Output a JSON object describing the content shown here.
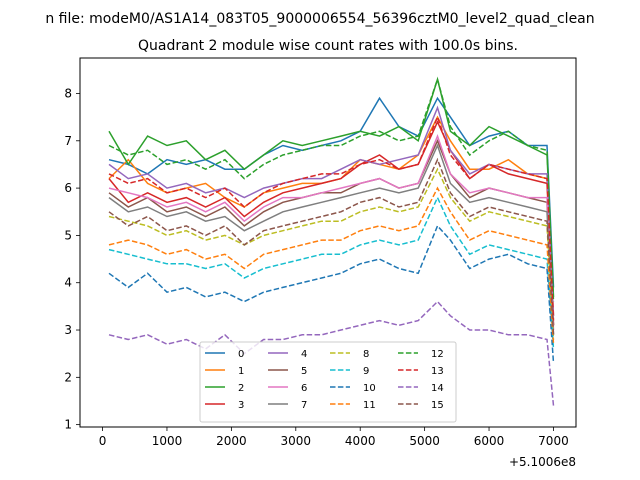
{
  "chart_data": {
    "type": "line",
    "suptitle": "n file: modeM0/AS1A14_083T05_9000006554_56396cztM0_level2_quad_clean",
    "title": "Quadrant 2 module wise count rates with 100.0s bins.",
    "xlabel": "",
    "ylabel": "",
    "x_offset_label": "+5.1006e8",
    "xlim": [
      -350,
      7350
    ],
    "ylim": [
      0.95,
      8.75
    ],
    "xticks": [
      "0",
      "1000",
      "2000",
      "3000",
      "4000",
      "5000",
      "6000",
      "7000"
    ],
    "yticks": [
      "1",
      "2",
      "3",
      "4",
      "5",
      "6",
      "7",
      "8"
    ],
    "x": [
      100,
      400,
      700,
      1000,
      1300,
      1600,
      1900,
      2200,
      2500,
      2800,
      3100,
      3400,
      3700,
      4000,
      4300,
      4600,
      4900,
      5200,
      5400,
      5700,
      6000,
      6300,
      6600,
      6900,
      7000
    ],
    "legend": {
      "location": "lower center",
      "columns": 4
    },
    "series": [
      {
        "name": "0",
        "color": "#1f77b4",
        "dash": "solid",
        "values": [
          6.6,
          6.5,
          6.3,
          6.6,
          6.5,
          6.6,
          6.4,
          6.4,
          6.7,
          6.9,
          6.8,
          6.9,
          7.0,
          7.2,
          7.9,
          7.3,
          7.1,
          7.9,
          7.5,
          6.9,
          7.1,
          7.2,
          6.9,
          6.9,
          3.9
        ]
      },
      {
        "name": "1",
        "color": "#ff7f0e",
        "dash": "solid",
        "values": [
          6.2,
          6.6,
          6.1,
          5.9,
          6.0,
          6.1,
          5.8,
          5.6,
          5.9,
          6.0,
          6.1,
          6.1,
          6.2,
          6.6,
          6.5,
          6.4,
          6.7,
          7.5,
          7.0,
          6.4,
          6.4,
          6.6,
          6.3,
          6.2,
          3.3
        ]
      },
      {
        "name": "2",
        "color": "#2ca02c",
        "dash": "solid",
        "values": [
          7.2,
          6.5,
          7.1,
          6.9,
          7.0,
          6.6,
          6.8,
          6.4,
          6.7,
          7.0,
          6.9,
          7.0,
          7.1,
          7.2,
          7.1,
          7.3,
          7.0,
          8.3,
          7.2,
          6.9,
          7.3,
          7.1,
          6.9,
          6.7,
          3.7
        ]
      },
      {
        "name": "3",
        "color": "#d62728",
        "dash": "solid",
        "values": [
          6.2,
          5.7,
          5.9,
          5.7,
          5.8,
          5.6,
          5.8,
          5.4,
          5.7,
          5.9,
          6.0,
          6.1,
          6.2,
          6.5,
          6.7,
          6.4,
          6.5,
          7.4,
          6.8,
          6.2,
          6.5,
          6.3,
          6.2,
          6.1,
          3.1
        ]
      },
      {
        "name": "4",
        "color": "#9467bd",
        "dash": "solid",
        "values": [
          6.5,
          6.2,
          6.3,
          6.0,
          6.1,
          5.9,
          6.0,
          5.8,
          6.0,
          6.1,
          6.2,
          6.2,
          6.4,
          6.6,
          6.5,
          6.6,
          6.7,
          7.7,
          6.8,
          6.3,
          6.5,
          6.4,
          6.3,
          6.3,
          3.3
        ]
      },
      {
        "name": "5",
        "color": "#8c564b",
        "dash": "solid",
        "values": [
          5.9,
          5.6,
          5.8,
          5.5,
          5.6,
          5.4,
          5.6,
          5.2,
          5.5,
          5.7,
          5.8,
          5.9,
          5.9,
          6.1,
          6.2,
          6.0,
          6.1,
          7.0,
          6.3,
          5.8,
          6.0,
          5.9,
          5.8,
          5.7,
          3.1
        ]
      },
      {
        "name": "6",
        "color": "#e377c2",
        "dash": "solid",
        "values": [
          6.0,
          5.9,
          5.8,
          5.6,
          5.7,
          5.5,
          5.7,
          5.3,
          5.6,
          5.8,
          5.8,
          5.9,
          6.0,
          6.1,
          6.2,
          6.0,
          6.1,
          7.1,
          6.3,
          5.9,
          6.0,
          5.9,
          5.8,
          5.8,
          3.0
        ]
      },
      {
        "name": "7",
        "color": "#7f7f7f",
        "dash": "solid",
        "values": [
          5.8,
          5.5,
          5.6,
          5.4,
          5.5,
          5.3,
          5.4,
          5.1,
          5.3,
          5.5,
          5.6,
          5.7,
          5.8,
          5.9,
          6.0,
          5.9,
          6.0,
          6.9,
          6.1,
          5.7,
          5.8,
          5.7,
          5.6,
          5.5,
          2.9
        ]
      },
      {
        "name": "8",
        "color": "#bcbd22",
        "dash": "dashed",
        "values": [
          5.4,
          5.3,
          5.2,
          5.0,
          5.1,
          4.9,
          5.0,
          4.8,
          5.0,
          5.1,
          5.2,
          5.3,
          5.3,
          5.5,
          5.6,
          5.5,
          5.6,
          6.4,
          5.8,
          5.3,
          5.5,
          5.4,
          5.3,
          5.2,
          2.8
        ]
      },
      {
        "name": "9",
        "color": "#17becf",
        "dash": "dashed",
        "values": [
          4.7,
          4.6,
          4.5,
          4.4,
          4.4,
          4.3,
          4.4,
          4.1,
          4.3,
          4.4,
          4.5,
          4.6,
          4.6,
          4.8,
          4.9,
          4.8,
          4.9,
          5.8,
          5.2,
          4.6,
          4.8,
          4.7,
          4.6,
          4.5,
          2.6
        ]
      },
      {
        "name": "10",
        "color": "#1f77b4",
        "dash": "dashed",
        "values": [
          4.2,
          3.9,
          4.2,
          3.8,
          3.9,
          3.7,
          3.8,
          3.6,
          3.8,
          3.9,
          4.0,
          4.1,
          4.2,
          4.4,
          4.5,
          4.3,
          4.2,
          5.2,
          4.9,
          4.3,
          4.5,
          4.6,
          4.4,
          4.3,
          2.3
        ]
      },
      {
        "name": "11",
        "color": "#ff7f0e",
        "dash": "dashed",
        "values": [
          4.8,
          4.9,
          4.8,
          4.6,
          4.7,
          4.5,
          4.6,
          4.3,
          4.6,
          4.7,
          4.8,
          4.9,
          4.9,
          5.1,
          5.2,
          5.1,
          5.2,
          6.0,
          5.5,
          4.9,
          5.1,
          5.0,
          4.9,
          4.8,
          2.7
        ]
      },
      {
        "name": "12",
        "color": "#2ca02c",
        "dash": "dashed",
        "values": [
          6.9,
          6.7,
          6.8,
          6.5,
          6.6,
          6.4,
          6.6,
          6.2,
          6.5,
          6.7,
          6.8,
          6.9,
          6.9,
          7.1,
          7.2,
          7.0,
          7.1,
          8.3,
          7.3,
          6.7,
          7.0,
          7.2,
          6.9,
          6.8,
          3.6
        ]
      },
      {
        "name": "13",
        "color": "#d62728",
        "dash": "dashed",
        "values": [
          6.3,
          6.1,
          6.2,
          5.9,
          6.0,
          5.8,
          6.0,
          5.6,
          5.9,
          6.1,
          6.2,
          6.3,
          6.3,
          6.5,
          6.6,
          6.4,
          6.5,
          7.5,
          6.7,
          6.2,
          6.5,
          6.4,
          6.3,
          6.2,
          3.2
        ]
      },
      {
        "name": "14",
        "color": "#9467bd",
        "dash": "dashed",
        "values": [
          2.9,
          2.8,
          2.9,
          2.7,
          2.8,
          2.6,
          2.9,
          2.5,
          2.8,
          2.8,
          2.9,
          2.9,
          3.0,
          3.1,
          3.2,
          3.1,
          3.2,
          3.6,
          3.3,
          3.0,
          3.0,
          2.9,
          2.9,
          2.8,
          1.4
        ]
      },
      {
        "name": "15",
        "color": "#8c564b",
        "dash": "dashed",
        "values": [
          5.5,
          5.2,
          5.4,
          5.1,
          5.2,
          5.0,
          5.2,
          4.8,
          5.1,
          5.2,
          5.3,
          5.4,
          5.5,
          5.7,
          5.8,
          5.6,
          5.7,
          6.6,
          5.9,
          5.4,
          5.6,
          5.5,
          5.4,
          5.3,
          2.9
        ]
      }
    ]
  }
}
